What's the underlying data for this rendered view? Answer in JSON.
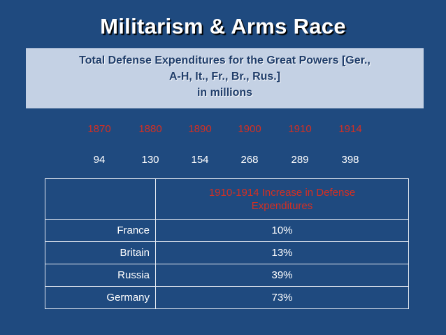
{
  "title": "Militarism & Arms Race",
  "subtitle": {
    "line1": "Total Defense Expenditures for the Great Powers [Ger.,",
    "line2": "A-H, It., Fr., Br., Rus.]",
    "line3": "in millions"
  },
  "expenditures": {
    "years": [
      "1870",
      "1880",
      "1890",
      "1900",
      "1910",
      "1914"
    ],
    "values": [
      "94",
      "130",
      "154",
      "268",
      "289",
      "398"
    ]
  },
  "increase_table": {
    "header_line1": "1910-1914 Increase in Defense",
    "header_line2": "Expenditures",
    "rows": [
      {
        "country": "France",
        "increase": "10%"
      },
      {
        "country": "Britain",
        "increase": "13%"
      },
      {
        "country": "Russia",
        "increase": "39%"
      },
      {
        "country": "Germany",
        "increase": "73%"
      }
    ]
  },
  "colors": {
    "background": "#1f4a7f",
    "subtitle_box": "#c4d1e4",
    "accent_red": "#d42f22"
  }
}
